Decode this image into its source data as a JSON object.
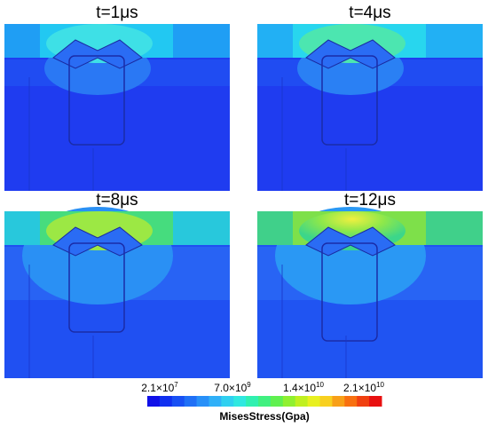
{
  "panels": [
    {
      "title": "t=1μs"
    },
    {
      "title": "t=4μs"
    },
    {
      "title": "t=8μs"
    },
    {
      "title": "t=12μs"
    }
  ],
  "colorbar": {
    "title": "MisesStress(Gpa)",
    "labels": [
      {
        "mantissa": "2.1×10",
        "exponent": "7"
      },
      {
        "mantissa": "7.0×10",
        "exponent": "9"
      },
      {
        "mantissa": "1.4×10",
        "exponent": "10"
      },
      {
        "mantissa": "2.1×10",
        "exponent": "10"
      }
    ]
  }
}
